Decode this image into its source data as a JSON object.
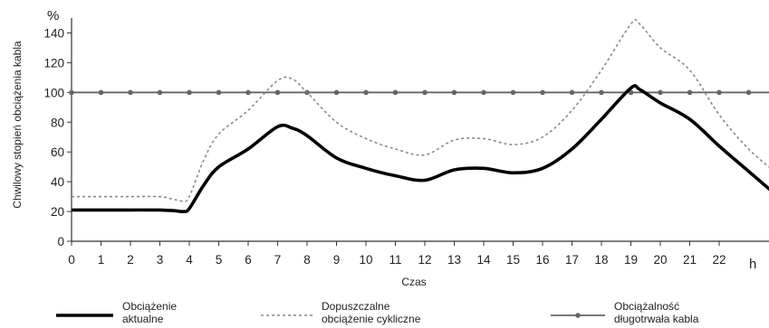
{
  "chart_data": {
    "type": "line",
    "ylabel": "Chwilowy stopień obciążenia kabla",
    "y_unit": "%",
    "xlabel": "Czas",
    "x_unit": "h",
    "xlim": [
      0,
      24
    ],
    "ylim": [
      0,
      150
    ],
    "x_ticks": [
      0,
      1,
      2,
      3,
      4,
      5,
      6,
      7,
      8,
      9,
      10,
      11,
      12,
      13,
      14,
      15,
      16,
      17,
      18,
      19,
      20,
      21,
      22
    ],
    "y_ticks": [
      0,
      20,
      40,
      60,
      80,
      100,
      120,
      140
    ],
    "grid": false,
    "legend_position": "bottom",
    "x": [
      0,
      1,
      2,
      3,
      3.5,
      3.8,
      4,
      4.5,
      5,
      6,
      7,
      7.5,
      8,
      9,
      10,
      11,
      12,
      13,
      14,
      15,
      16,
      17,
      18,
      19,
      19.3,
      20,
      21,
      22,
      23,
      24
    ],
    "series": [
      {
        "name": "Obciążenie aktualne",
        "color": "#000000",
        "style": "solid-thick",
        "values": [
          21,
          21,
          21,
          21,
          20.5,
          20,
          22,
          38,
          50,
          62,
          77,
          76,
          71,
          56,
          49,
          44,
          41,
          48,
          49,
          46,
          49,
          62,
          82,
          103,
          102,
          93,
          82,
          64,
          47,
          30
        ]
      },
      {
        "name": "Dopuszczalne obciążenie cykliczne",
        "color": "#777777",
        "style": "dotted",
        "values": [
          30,
          30,
          30,
          30,
          28,
          27,
          30,
          55,
          72,
          88,
          108,
          109,
          100,
          80,
          69,
          62,
          58,
          68,
          69,
          65,
          70,
          88,
          115,
          146,
          146,
          130,
          115,
          85,
          62,
          45
        ]
      },
      {
        "name": "Obciążalność długotrwała kabla",
        "color": "#666666",
        "style": "solid-markers",
        "x": [
          0,
          1,
          2,
          3,
          4,
          5,
          6,
          7,
          8,
          9,
          10,
          11,
          12,
          13,
          14,
          15,
          16,
          17,
          18,
          19,
          20,
          21,
          22,
          23,
          24
        ],
        "values": [
          100,
          100,
          100,
          100,
          100,
          100,
          100,
          100,
          100,
          100,
          100,
          100,
          100,
          100,
          100,
          100,
          100,
          100,
          100,
          100,
          100,
          100,
          100,
          100,
          100
        ]
      }
    ],
    "legend": [
      {
        "line1": "Obciążenie",
        "line2": "aktualne"
      },
      {
        "line1": "Dopuszczalne",
        "line2": "obciążenie cykliczne"
      },
      {
        "line1": "Obciążalność",
        "line2": "długotrwała kabla"
      }
    ]
  }
}
